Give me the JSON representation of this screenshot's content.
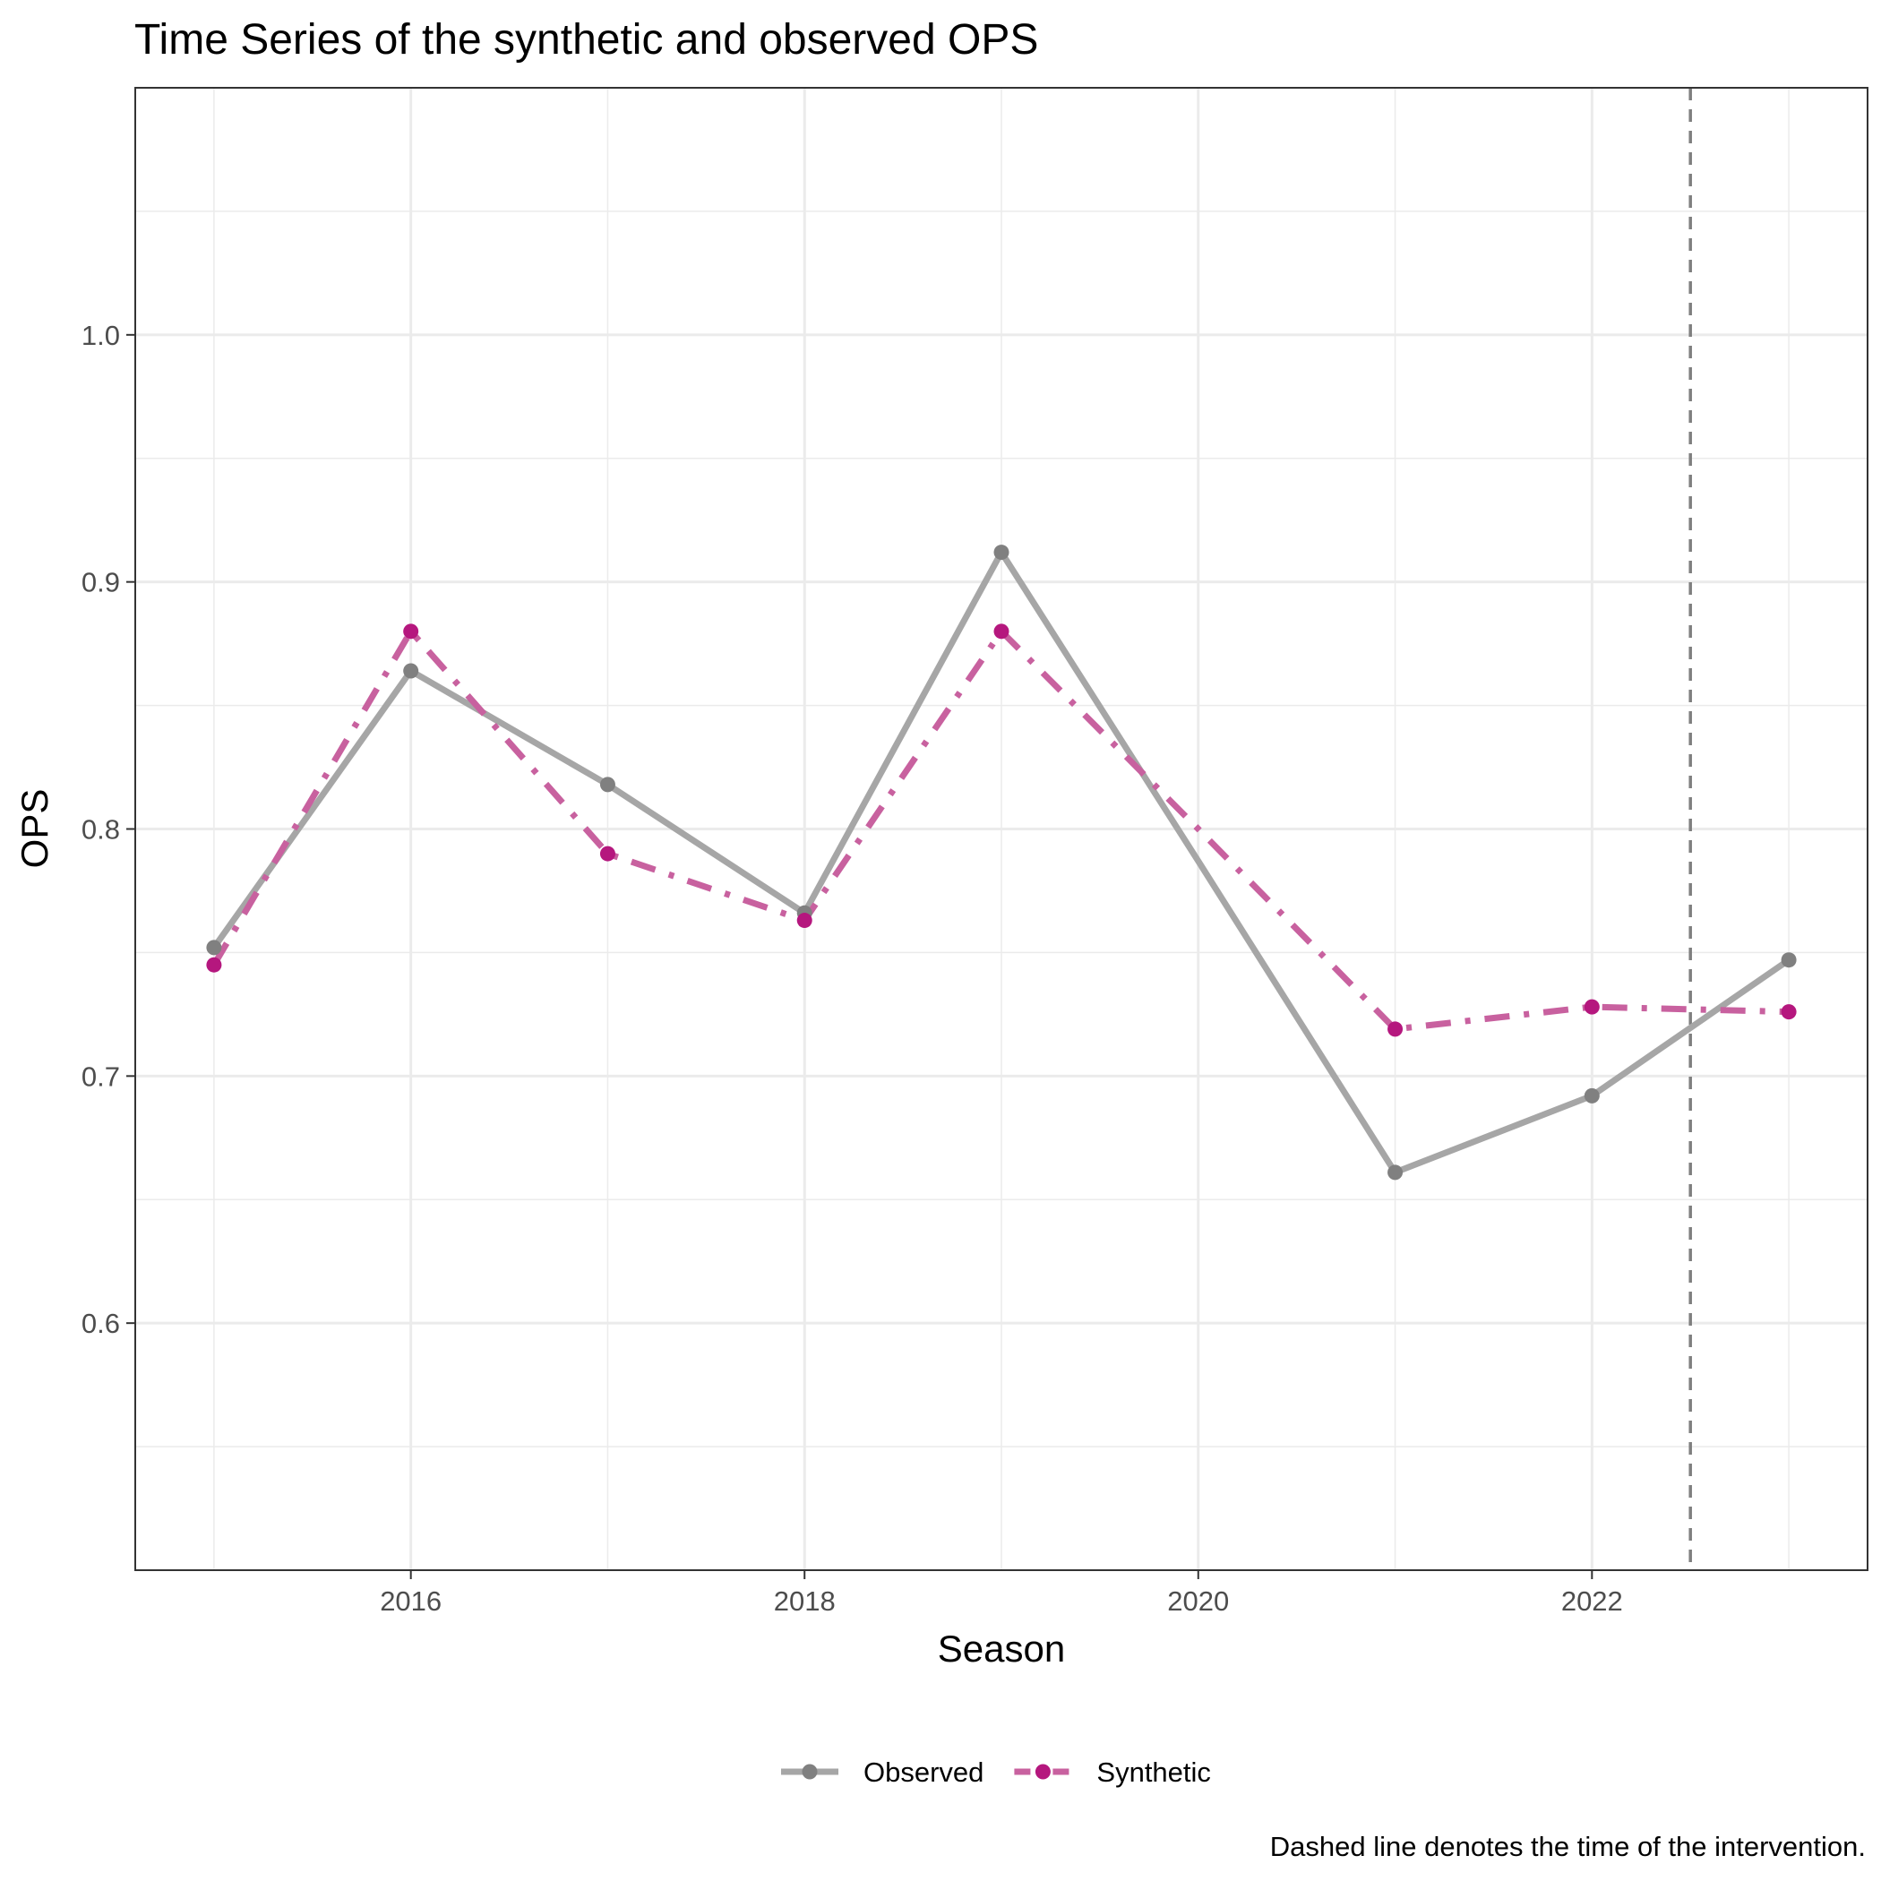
{
  "chart_data": {
    "type": "line",
    "title": "Time Series of the synthetic and observed OPS",
    "xlabel": "Season",
    "ylabel": "OPS",
    "caption": "Dashed line denotes the time of the intervention.",
    "x": [
      2015,
      2016,
      2017,
      2018,
      2019,
      2020,
      2021,
      2022,
      2023
    ],
    "xlim": [
      2014.6,
      2023.4
    ],
    "ylim": [
      0.5,
      1.1
    ],
    "x_ticks": [
      "2016",
      "2018",
      "2020",
      "2022"
    ],
    "y_ticks": [
      "0.6",
      "0.7",
      "0.8",
      "0.9",
      "1.0"
    ],
    "intervention_x": 2022.5,
    "grid": true,
    "legend_position": "bottom",
    "series": [
      {
        "name": "Observed",
        "color": "#808080",
        "line_color": "#a6a6a6",
        "line_style": "solid",
        "points": [
          [
            2015,
            0.752
          ],
          [
            2016,
            0.864
          ],
          [
            2017,
            0.818
          ],
          [
            2018,
            0.766
          ],
          [
            2019,
            0.912
          ],
          [
            2021,
            0.661
          ],
          [
            2022,
            0.692
          ],
          [
            2023,
            0.747
          ]
        ],
        "line": [
          [
            2015,
            0.752
          ],
          [
            2016,
            0.864
          ],
          [
            2017,
            0.818
          ],
          [
            2018,
            0.766
          ],
          [
            2019,
            0.912
          ],
          [
            2020,
            0.787
          ],
          [
            2021,
            0.661
          ],
          [
            2022,
            0.692
          ],
          [
            2023,
            0.747
          ]
        ]
      },
      {
        "name": "Synthetic",
        "color": "#b5177e",
        "line_color": "#c8619f",
        "line_style": "dashdot",
        "points": [
          [
            2015,
            0.745
          ],
          [
            2016,
            0.88
          ],
          [
            2017,
            0.79
          ],
          [
            2018,
            0.763
          ],
          [
            2019,
            0.88
          ],
          [
            2021,
            0.719
          ],
          [
            2022,
            0.728
          ],
          [
            2023,
            0.726
          ]
        ],
        "line": [
          [
            2015,
            0.745
          ],
          [
            2016,
            0.88
          ],
          [
            2017,
            0.79
          ],
          [
            2018,
            0.763
          ],
          [
            2019,
            0.88
          ],
          [
            2020,
            0.8
          ],
          [
            2021,
            0.719
          ],
          [
            2022,
            0.728
          ],
          [
            2023,
            0.726
          ]
        ]
      }
    ]
  }
}
